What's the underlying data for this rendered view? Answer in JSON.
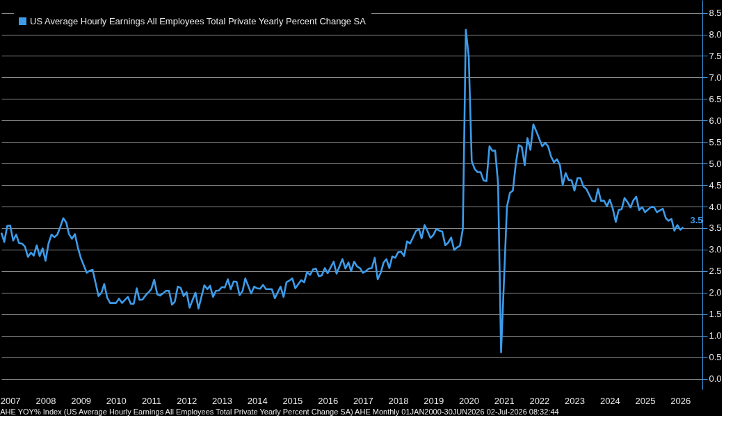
{
  "chart_data": {
    "type": "line",
    "x": [
      "2007-04",
      "2007-05",
      "2007-06",
      "2007-07",
      "2007-08",
      "2007-09",
      "2007-10",
      "2007-11",
      "2007-12",
      "2008-01",
      "2008-02",
      "2008-03",
      "2008-04",
      "2008-05",
      "2008-06",
      "2008-07",
      "2008-08",
      "2008-09",
      "2008-10",
      "2008-11",
      "2008-12",
      "2009-01",
      "2009-02",
      "2009-03",
      "2009-04",
      "2009-05",
      "2009-06",
      "2009-07",
      "2009-09",
      "2009-10",
      "2009-11",
      "2010-01",
      "2010-02",
      "2010-03",
      "2010-04",
      "2010-05",
      "2010-07",
      "2010-08",
      "2010-09",
      "2010-11",
      "2010-12",
      "2011-01",
      "2011-02",
      "2011-03",
      "2011-04",
      "2011-05",
      "2011-07",
      "2011-08",
      "2011-09",
      "2011-10",
      "2011-12",
      "2012-01",
      "2012-02",
      "2012-03",
      "2012-04",
      "2012-05",
      "2012-06",
      "2012-07",
      "2012-08",
      "2012-10",
      "2012-11",
      "2013-01",
      "2013-02",
      "2013-03",
      "2013-04",
      "2013-05",
      "2013-06",
      "2013-07",
      "2013-08",
      "2013-09",
      "2013-10",
      "2013-11",
      "2013-12",
      "2014-01",
      "2014-02",
      "2014-03",
      "2014-05",
      "2014-06",
      "2014-07",
      "2014-08",
      "2014-09",
      "2014-10",
      "2014-12",
      "2015-01",
      "2015-03",
      "2015-04",
      "2015-05",
      "2015-06",
      "2015-07",
      "2015-08",
      "2015-10",
      "2015-11",
      "2015-12",
      "2016-01",
      "2016-02",
      "2016-03",
      "2016-04",
      "2016-05",
      "2016-06",
      "2016-07",
      "2016-09",
      "2016-10",
      "2016-12",
      "2017-01",
      "2017-02",
      "2017-03",
      "2017-04",
      "2017-05",
      "2017-06",
      "2017-07",
      "2017-08",
      "2017-09",
      "2017-10",
      "2017-11",
      "2017-12",
      "2018-01",
      "2018-02",
      "2018-03",
      "2018-04",
      "2018-05",
      "2018-06",
      "2018-07",
      "2018-08",
      "2018-09",
      "2018-10",
      "2018-11",
      "2018-12",
      "2019-01",
      "2019-02",
      "2019-03",
      "2019-04",
      "2019-05",
      "2019-06",
      "2019-07",
      "2019-08",
      "2019-09",
      "2019-10",
      "2019-11",
      "2019-12",
      "2020-01",
      "2020-02",
      "2020-03",
      "2020-04",
      "2020-05",
      "2020-06",
      "2020-07",
      "2020-08",
      "2020-09",
      "2020-10",
      "2020-11",
      "2020-12",
      "2021-01",
      "2021-02",
      "2021-03",
      "2021-04",
      "2021-05",
      "2021-06",
      "2021-08",
      "2021-09",
      "2021-10",
      "2021-11",
      "2021-12",
      "2022-01",
      "2022-02",
      "2022-03",
      "2022-04",
      "2022-05",
      "2022-06",
      "2022-08",
      "2022-09",
      "2022-10",
      "2022-11",
      "2022-12",
      "2023-01",
      "2023-02",
      "2023-03",
      "2023-04",
      "2023-05",
      "2023-06",
      "2023-07",
      "2023-08",
      "2023-09",
      "2023-10",
      "2023-11",
      "2024-01",
      "2024-02",
      "2024-03",
      "2024-04",
      "2024-05",
      "2024-06",
      "2024-07",
      "2024-08",
      "2024-09",
      "2024-10",
      "2024-11",
      "2024-12",
      "2025-01",
      "2025-02",
      "2025-03",
      "2025-04",
      "2025-05",
      "2025-06",
      "2025-07",
      "2025-09",
      "2025-10",
      "2025-11",
      "2026-01",
      "2026-02",
      "2026-03",
      "2026-04",
      "2026-05",
      "2026-06",
      "2026-07",
      "2026-08"
    ],
    "series": [
      {
        "name": "US Average Hourly Earnings All Employees Total Private Yearly Percent Change SA",
        "color": "#3d9be9",
        "values": [
          3.39,
          3.18,
          3.55,
          3.56,
          3.21,
          3.35,
          3.15,
          3.14,
          3.07,
          2.83,
          2.93,
          2.86,
          3.1,
          2.85,
          3.03,
          2.74,
          3.14,
          3.35,
          3.29,
          3.35,
          3.53,
          3.73,
          3.63,
          3.36,
          3.25,
          3.36,
          3.05,
          2.81,
          2.46,
          2.51,
          2.53,
          1.92,
          2.0,
          2.2,
          1.88,
          1.76,
          1.76,
          1.86,
          1.76,
          1.9,
          1.74,
          1.74,
          2.1,
          1.83,
          1.84,
          1.93,
          2.08,
          2.3,
          1.96,
          1.93,
          2.04,
          2.04,
          1.72,
          1.79,
          2.14,
          2.11,
          1.92,
          2.01,
          1.65,
          2.0,
          1.63,
          2.17,
          2.08,
          2.16,
          1.9,
          2.04,
          2.05,
          2.13,
          2.12,
          2.31,
          2.08,
          2.26,
          2.25,
          1.94,
          2.04,
          2.33,
          1.98,
          2.14,
          2.1,
          2.09,
          2.18,
          2.08,
          2.08,
          1.87,
          2.14,
          1.9,
          2.24,
          2.28,
          2.33,
          2.1,
          2.29,
          2.24,
          2.48,
          2.41,
          2.54,
          2.56,
          2.38,
          2.4,
          2.57,
          2.45,
          2.72,
          2.44,
          2.78,
          2.56,
          2.7,
          2.5,
          2.72,
          2.61,
          2.57,
          2.46,
          2.5,
          2.56,
          2.57,
          2.81,
          2.31,
          2.46,
          2.7,
          2.78,
          2.57,
          2.84,
          2.81,
          2.94,
          2.95,
          2.85,
          3.19,
          3.14,
          3.28,
          3.43,
          3.48,
          3.26,
          3.57,
          3.43,
          3.27,
          3.34,
          3.48,
          3.44,
          3.42,
          3.1,
          3.16,
          3.28,
          2.99,
          3.05,
          3.09,
          3.48,
          8.11,
          7.49,
          5.06,
          4.87,
          4.8,
          4.8,
          4.61,
          4.59,
          5.4,
          5.3,
          5.3,
          4.53,
          0.61,
          4.0,
          4.32,
          4.37,
          5.0,
          5.43,
          5.39,
          4.96,
          5.59,
          5.32,
          5.91,
          5.75,
          5.4,
          5.48,
          5.4,
          5.16,
          5.03,
          5.1,
          4.96,
          4.5,
          4.78,
          4.62,
          4.61,
          4.37,
          4.66,
          4.66,
          4.47,
          4.41,
          4.13,
          4.12,
          4.41,
          4.13,
          4.14,
          4.01,
          4.16,
          3.95,
          3.64,
          3.92,
          3.94,
          4.2,
          4.1,
          3.98,
          4.14,
          4.23,
          3.92,
          3.99,
          3.87,
          3.99,
          3.99,
          3.87,
          3.95,
          3.73,
          3.67,
          3.71,
          3.44,
          3.57,
          3.46,
          3.52
        ]
      }
    ],
    "xlim": [
      "2007-04-01",
      "2027-02-15"
    ],
    "xticks": [
      {
        "value": "2007-07-01",
        "label": "2007"
      },
      {
        "value": "2008-07-01",
        "label": "2008"
      },
      {
        "value": "2009-07-01",
        "label": "2009"
      },
      {
        "value": "2010-07-01",
        "label": "2010"
      },
      {
        "value": "2011-07-01",
        "label": "2011"
      },
      {
        "value": "2012-07-01",
        "label": "2012"
      },
      {
        "value": "2013-07-01",
        "label": "2013"
      },
      {
        "value": "2014-07-01",
        "label": "2014"
      },
      {
        "value": "2015-07-01",
        "label": "2015"
      },
      {
        "value": "2016-07-01",
        "label": "2016"
      },
      {
        "value": "2017-07-01",
        "label": "2017"
      },
      {
        "value": "2018-07-01",
        "label": "2018"
      },
      {
        "value": "2019-07-01",
        "label": "2019"
      },
      {
        "value": "2020-07-01",
        "label": "2020"
      },
      {
        "value": "2021-07-01",
        "label": "2021"
      },
      {
        "value": "2022-07-01",
        "label": "2022"
      },
      {
        "value": "2023-07-01",
        "label": "2023"
      },
      {
        "value": "2024-07-01",
        "label": "2024"
      },
      {
        "value": "2025-07-01",
        "label": "2025"
      },
      {
        "value": "2026-07-01",
        "label": "2026"
      }
    ],
    "ylim": [
      -0.25,
      8.8
    ],
    "yticks": [
      {
        "value": 0,
        "label": "0.0"
      },
      0.5,
      {
        "value": 1,
        "label": "1.0"
      },
      1.5,
      {
        "value": 2,
        "label": "2.0"
      },
      2.5,
      {
        "value": 3,
        "label": "3.0"
      },
      3.5,
      {
        "value": 4,
        "label": "4.0"
      },
      4.5,
      {
        "value": 5,
        "label": "5.0"
      },
      5.5,
      {
        "value": 6,
        "label": "6.0"
      },
      6.5,
      {
        "value": 7,
        "label": "7.0"
      },
      7.5,
      {
        "value": 8,
        "label": "8.0"
      },
      8.5
    ],
    "grid": "y",
    "legend": "top left",
    "marker": "none",
    "line_style": "solid",
    "annotations": [
      {
        "text": "3.5",
        "x": "2026-08",
        "y": 3.52
      },
      "AHE YOY% Index (US Average Hourly Earnings All Employees Total Private Yearly Percent Change SA) AHE Monthly 01JAN2000-30JUN2026",
      "02-Jul-2026 08:32:44"
    ]
  }
}
